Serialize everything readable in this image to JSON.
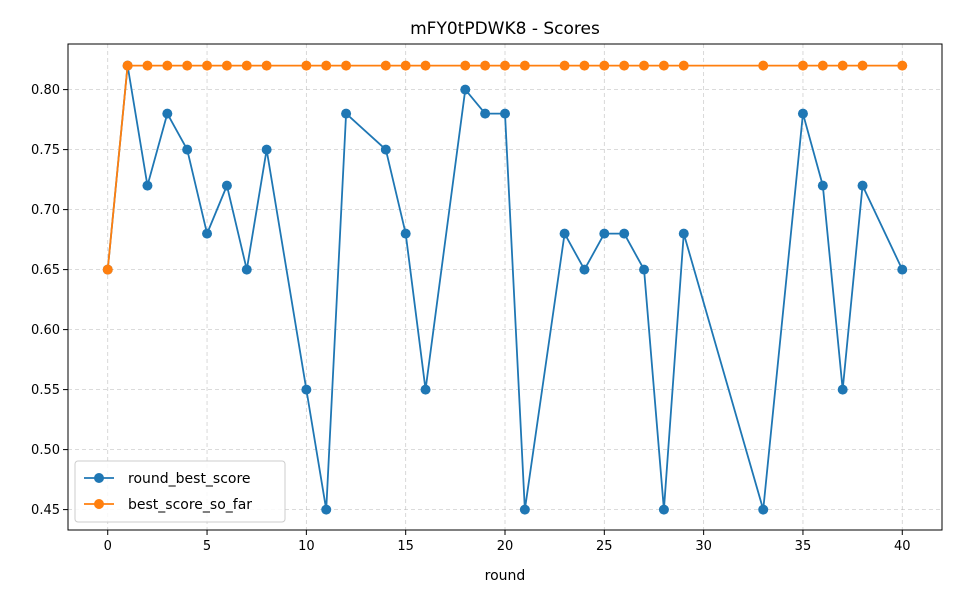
{
  "chart_data": {
    "type": "line",
    "title": "mFY0tPDWK8 - Scores",
    "xlabel": "round",
    "ylabel": "",
    "xlim": [
      -2,
      42
    ],
    "ylim": [
      0.433,
      0.838
    ],
    "xticks": [
      0,
      5,
      10,
      15,
      20,
      25,
      30,
      35,
      40
    ],
    "yticks": [
      0.45,
      0.5,
      0.55,
      0.6,
      0.65,
      0.7,
      0.75,
      0.8
    ],
    "grid": true,
    "legend_position": "lower-left",
    "x": [
      0,
      1,
      2,
      3,
      4,
      5,
      6,
      7,
      8,
      10,
      11,
      12,
      14,
      15,
      16,
      18,
      19,
      20,
      21,
      23,
      24,
      25,
      26,
      27,
      28,
      29,
      33,
      35,
      36,
      37,
      38,
      40
    ],
    "series": [
      {
        "name": "round_best_score",
        "color": "#1f77b4",
        "values": [
          0.65,
          0.82,
          0.72,
          0.78,
          0.75,
          0.68,
          0.72,
          0.65,
          0.75,
          0.55,
          0.45,
          0.78,
          0.75,
          0.68,
          0.55,
          0.8,
          0.78,
          0.78,
          0.45,
          0.68,
          0.65,
          0.68,
          0.68,
          0.65,
          0.45,
          0.68,
          0.45,
          0.78,
          0.72,
          0.55,
          0.72,
          0.65
        ]
      },
      {
        "name": "best_score_so_far",
        "color": "#ff7f0e",
        "values": [
          0.65,
          0.82,
          0.82,
          0.82,
          0.82,
          0.82,
          0.82,
          0.82,
          0.82,
          0.82,
          0.82,
          0.82,
          0.82,
          0.82,
          0.82,
          0.82,
          0.82,
          0.82,
          0.82,
          0.82,
          0.82,
          0.82,
          0.82,
          0.82,
          0.82,
          0.82,
          0.82,
          0.82,
          0.82,
          0.82,
          0.82,
          0.82
        ]
      }
    ]
  }
}
